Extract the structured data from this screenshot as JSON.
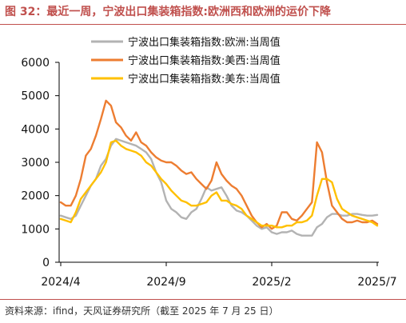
{
  "figure_title": "图 32：最近一周，宁波出口集装箱指数:欧洲西和欧洲的运价下降",
  "source_note": "资料来源：ifind，天风证券研究所（截至 2025 年 7 月 25 日）",
  "chart_data": {
    "type": "line",
    "ylim": [
      0,
      6000
    ],
    "y_ticks": [
      "0",
      "1000",
      "2000",
      "3000",
      "4000",
      "5000",
      "6000"
    ],
    "y_tick_values": [
      0,
      1000,
      2000,
      3000,
      4000,
      5000,
      6000
    ],
    "x_tick_labels": [
      "2024/4",
      "2024/9",
      "2025/2",
      "2025/7"
    ],
    "x_tick_index": [
      0,
      21,
      42,
      63
    ],
    "legend_position": "top",
    "grid": false,
    "series": [
      {
        "name": "宁波出口集装箱指数:欧洲:当周值",
        "color": "#b3b3b3",
        "values": [
          1400,
          1350,
          1300,
          1400,
          1700,
          2000,
          2300,
          2500,
          2900,
          3100,
          3500,
          3700,
          3650,
          3600,
          3550,
          3500,
          3400,
          3300,
          3100,
          2700,
          2400,
          1850,
          1600,
          1500,
          1350,
          1300,
          1500,
          1600,
          1900,
          2250,
          2150,
          2200,
          2250,
          2000,
          1700,
          1550,
          1500,
          1400,
          1250,
          1100,
          1000,
          1050,
          900,
          850,
          900,
          900,
          950,
          850,
          800,
          800,
          800,
          1050,
          1150,
          1350,
          1450,
          1450,
          1400,
          1400,
          1450,
          1450,
          1420,
          1400,
          1400,
          1420
        ]
      },
      {
        "name": "宁波出口集装箱指数:美西:当周值",
        "color": "#ed7d31",
        "values": [
          1800,
          1700,
          1700,
          2000,
          2500,
          3200,
          3400,
          3800,
          4300,
          4850,
          4700,
          4200,
          4050,
          3800,
          3650,
          3900,
          3600,
          3500,
          3300,
          3150,
          3050,
          3000,
          3000,
          2900,
          2750,
          2650,
          2700,
          2500,
          2350,
          2200,
          2450,
          3000,
          2650,
          2450,
          2300,
          2200,
          2000,
          1700,
          1400,
          1200,
          1050,
          1150,
          1000,
          1100,
          1500,
          1500,
          1300,
          1250,
          1400,
          1600,
          1800,
          3600,
          3300,
          2400,
          1700,
          1500,
          1300,
          1200,
          1200,
          1250,
          1200,
          1200,
          1250,
          1150
        ]
      },
      {
        "name": "宁波出口集装箱指数:美东:当周值",
        "color": "#ffc000",
        "values": [
          1300,
          1250,
          1200,
          1500,
          1900,
          2100,
          2300,
          2500,
          2700,
          3000,
          3600,
          3650,
          3500,
          3400,
          3350,
          3300,
          3200,
          3000,
          2900,
          2700,
          2500,
          2350,
          2150,
          2000,
          1850,
          1800,
          1700,
          1700,
          1750,
          1800,
          2000,
          2100,
          1850,
          1850,
          1750,
          1700,
          1600,
          1400,
          1300,
          1200,
          1100,
          1100,
          1100,
          1050,
          1050,
          1100,
          1100,
          1200,
          1200,
          1250,
          1400,
          2000,
          2500,
          2500,
          2400,
          1900,
          1600,
          1500,
          1400,
          1350,
          1300,
          1250,
          1200,
          1100
        ]
      }
    ]
  }
}
